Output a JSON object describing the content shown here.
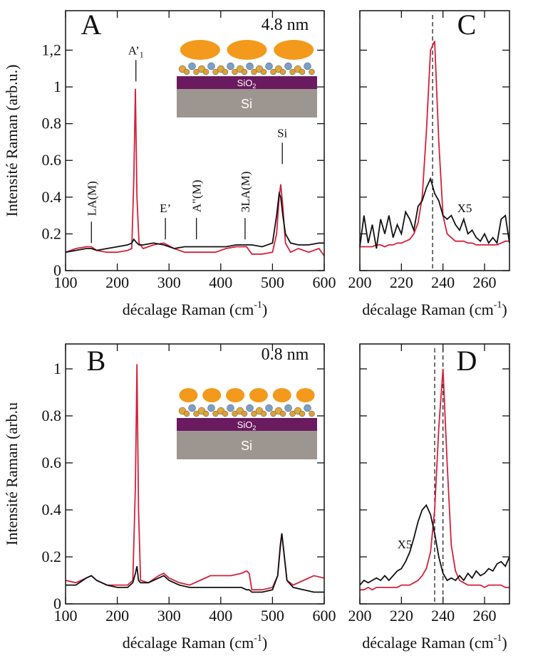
{
  "chart_data": [
    {
      "type": "line",
      "label": "A",
      "note": "4.8 nm",
      "ylabel": "Intensité Raman (arb.u.)",
      "xlabel": {
        "text": "décalage Raman (cm",
        "sup": "-1",
        "end": ")"
      },
      "xlim": [
        100,
        600
      ],
      "ylim": [
        0,
        1.415
      ],
      "xticks": [
        100,
        200,
        300,
        400,
        500,
        600
      ],
      "yticks": [
        0,
        0.2,
        0.4,
        0.6,
        0.8,
        1,
        {
          "value": 1.2,
          "label": "1,2"
        }
      ],
      "ytick_labels": true,
      "x": [
        100,
        120,
        140,
        150,
        160,
        180,
        200,
        220,
        228,
        232,
        235,
        238,
        242,
        250,
        270,
        290,
        310,
        330,
        350,
        370,
        390,
        410,
        430,
        450,
        460,
        480,
        500,
        508,
        513,
        516,
        520,
        525,
        535,
        550,
        570,
        590,
        600
      ],
      "series": [
        {
          "color": "#d3203c",
          "values": [
            0.1,
            0.12,
            0.13,
            0.13,
            0.11,
            0.1,
            0.1,
            0.11,
            0.12,
            0.5,
            0.99,
            0.4,
            0.15,
            0.12,
            0.14,
            0.15,
            0.12,
            0.1,
            0.1,
            0.1,
            0.1,
            0.12,
            0.13,
            0.13,
            0.09,
            0.09,
            0.1,
            0.2,
            0.4,
            0.47,
            0.35,
            0.15,
            0.1,
            0.12,
            0.1,
            0.12,
            0.08
          ]
        },
        {
          "color": "#111111",
          "values": [
            0.1,
            0.11,
            0.12,
            0.12,
            0.11,
            0.12,
            0.13,
            0.14,
            0.15,
            0.17,
            0.16,
            0.15,
            0.14,
            0.14,
            0.15,
            0.14,
            0.12,
            0.13,
            0.13,
            0.13,
            0.13,
            0.13,
            0.14,
            0.14,
            0.14,
            0.13,
            0.15,
            0.3,
            0.42,
            0.4,
            0.3,
            0.2,
            0.15,
            0.14,
            0.14,
            0.15,
            0.15
          ]
        }
      ],
      "annotations": [
        {
          "label": "LA(M)",
          "x": 150,
          "y": 0.15,
          "vertical": true
        },
        {
          "label": "A’",
          "sub": "1",
          "x": 236,
          "y": 1.03,
          "vertical": false
        },
        {
          "label": "E’",
          "x": 293,
          "y": 0.17,
          "vertical": false
        },
        {
          "label": "A\"(M)",
          "x": 353,
          "y": 0.17,
          "vertical": true
        },
        {
          "label": "3LA(M)",
          "x": 447,
          "y": 0.17,
          "vertical": true
        },
        {
          "label": "Si",
          "x": 519,
          "y": 0.58,
          "vertical": false
        }
      ],
      "inset": {
        "layer": "SiO",
        "sub": "2",
        "base": "Si"
      }
    },
    {
      "type": "line",
      "label": "C",
      "note": "X5",
      "xlabel": {
        "text": "décalage Raman (cm",
        "sup": "-1",
        "end": ")"
      },
      "xlim": [
        200,
        272
      ],
      "ylim": [
        0,
        1.415
      ],
      "xticks": [
        200,
        220,
        240,
        260
      ],
      "yticks": [
        0,
        0.2,
        0.4,
        0.6,
        0.8,
        1,
        1.2
      ],
      "ytick_labels": false,
      "ref_lines": [
        235
      ],
      "x": [
        200,
        202,
        204,
        206,
        208,
        210,
        212,
        214,
        216,
        218,
        220,
        222,
        224,
        226,
        228,
        230,
        232,
        234,
        236,
        238,
        240,
        242,
        244,
        246,
        248,
        250,
        252,
        254,
        256,
        258,
        260,
        262,
        264,
        266,
        268,
        270,
        272
      ],
      "series": [
        {
          "color": "#d3203c",
          "values": [
            0.13,
            0.13,
            0.13,
            0.13,
            0.14,
            0.14,
            0.13,
            0.14,
            0.14,
            0.15,
            0.15,
            0.16,
            0.17,
            0.2,
            0.26,
            0.4,
            0.75,
            1.2,
            1.25,
            0.7,
            0.3,
            0.2,
            0.18,
            0.16,
            0.16,
            0.16,
            0.15,
            0.15,
            0.14,
            0.14,
            0.14,
            0.14,
            0.14,
            0.14,
            0.15,
            0.16,
            0.16
          ]
        },
        {
          "color": "#111111",
          "values": [
            0.13,
            0.3,
            0.15,
            0.25,
            0.12,
            0.28,
            0.2,
            0.3,
            0.18,
            0.25,
            0.2,
            0.32,
            0.28,
            0.22,
            0.35,
            0.38,
            0.45,
            0.5,
            0.42,
            0.38,
            0.3,
            0.28,
            0.3,
            0.25,
            0.22,
            0.28,
            0.2,
            0.22,
            0.18,
            0.16,
            0.2,
            0.15,
            0.18,
            0.15,
            0.28,
            0.3,
            0.15
          ]
        }
      ]
    },
    {
      "type": "line",
      "label": "B",
      "note": "0.8 nm",
      "ylabel": "Intensité Raman  (arb.u",
      "xlabel": {
        "text": "décalage Raman (cm",
        "sup": "-1",
        "end": ")"
      },
      "xlim": [
        100,
        600
      ],
      "ylim": [
        0,
        1.106
      ],
      "xticks": [
        100,
        200,
        300,
        400,
        500,
        600
      ],
      "yticks": [
        0,
        0.2,
        0.4,
        0.6,
        0.8,
        1
      ],
      "ytick_labels": true,
      "x": [
        100,
        120,
        140,
        150,
        160,
        180,
        200,
        220,
        230,
        235,
        238,
        241,
        245,
        260,
        280,
        290,
        300,
        320,
        340,
        360,
        380,
        400,
        420,
        440,
        450,
        455,
        460,
        480,
        500,
        510,
        515,
        518,
        522,
        528,
        540,
        560,
        580,
        600
      ],
      "series": [
        {
          "color": "#d3203c",
          "values": [
            0.1,
            0.09,
            0.11,
            0.12,
            0.1,
            0.08,
            0.08,
            0.08,
            0.1,
            0.5,
            1.02,
            0.4,
            0.1,
            0.09,
            0.12,
            0.13,
            0.11,
            0.09,
            0.08,
            0.1,
            0.12,
            0.12,
            0.12,
            0.13,
            0.14,
            0.13,
            0.06,
            0.06,
            0.07,
            0.12,
            0.25,
            0.3,
            0.22,
            0.1,
            0.08,
            0.1,
            0.12,
            0.11
          ]
        },
        {
          "color": "#111111",
          "values": [
            0.08,
            0.08,
            0.11,
            0.12,
            0.1,
            0.08,
            0.07,
            0.07,
            0.09,
            0.13,
            0.16,
            0.1,
            0.09,
            0.09,
            0.11,
            0.12,
            0.1,
            0.08,
            0.07,
            0.07,
            0.07,
            0.07,
            0.07,
            0.07,
            0.06,
            0.06,
            0.05,
            0.05,
            0.06,
            0.12,
            0.24,
            0.3,
            0.22,
            0.1,
            0.07,
            0.06,
            0.05,
            0.05
          ]
        }
      ],
      "inset": {
        "layer": "SiO",
        "sub": "2",
        "base": "Si"
      }
    },
    {
      "type": "line",
      "label": "D",
      "note": "X5",
      "xlabel": {
        "text": "décalage Raman (cm",
        "sup": "-1",
        "end": ")"
      },
      "xlim": [
        200,
        272
      ],
      "ylim": [
        0,
        1.106
      ],
      "xticks": [
        200,
        220,
        240,
        260
      ],
      "yticks": [
        0,
        0.2,
        0.4,
        0.6,
        0.8,
        1
      ],
      "ytick_labels": false,
      "ref_lines": [
        236,
        240
      ],
      "x": [
        200,
        202,
        204,
        206,
        208,
        210,
        212,
        214,
        216,
        218,
        220,
        222,
        224,
        226,
        228,
        230,
        232,
        234,
        236,
        238,
        240,
        242,
        244,
        246,
        248,
        250,
        252,
        254,
        256,
        258,
        260,
        262,
        264,
        266,
        268,
        270,
        272
      ],
      "series": [
        {
          "color": "#d3203c",
          "values": [
            0.06,
            0.06,
            0.07,
            0.06,
            0.07,
            0.07,
            0.07,
            0.07,
            0.07,
            0.07,
            0.08,
            0.08,
            0.08,
            0.09,
            0.1,
            0.12,
            0.15,
            0.22,
            0.4,
            0.75,
            1.0,
            0.6,
            0.25,
            0.14,
            0.1,
            0.09,
            0.08,
            0.08,
            0.08,
            0.08,
            0.07,
            0.08,
            0.08,
            0.08,
            0.08,
            0.07,
            0.07
          ]
        },
        {
          "color": "#111111",
          "values": [
            0.08,
            0.1,
            0.09,
            0.1,
            0.11,
            0.1,
            0.12,
            0.1,
            0.12,
            0.14,
            0.15,
            0.18,
            0.22,
            0.28,
            0.35,
            0.4,
            0.42,
            0.38,
            0.3,
            0.2,
            0.13,
            0.1,
            0.11,
            0.1,
            0.12,
            0.1,
            0.13,
            0.11,
            0.14,
            0.12,
            0.13,
            0.15,
            0.14,
            0.17,
            0.18,
            0.16,
            0.2
          ]
        }
      ]
    }
  ]
}
